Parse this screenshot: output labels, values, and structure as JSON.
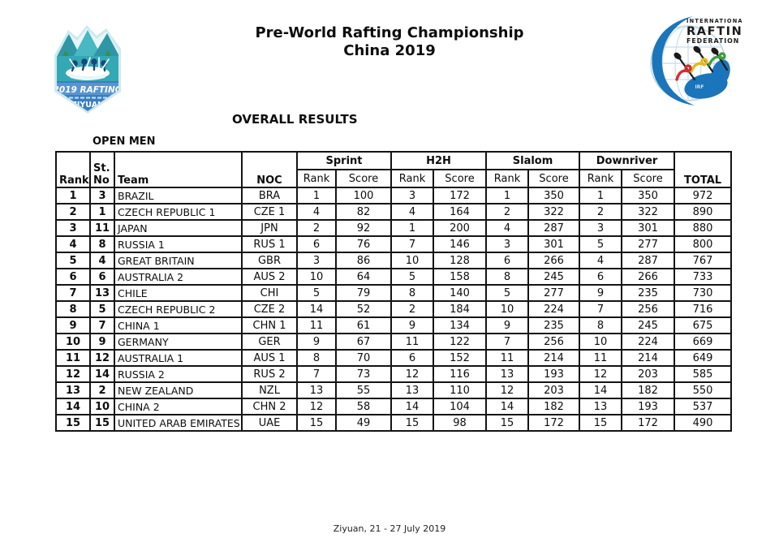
{
  "title": {
    "line1": "Pre-World Rafting Championship",
    "line2": "China 2019"
  },
  "section_heading": "OVERALL RESULTS",
  "category": "OPEN MEN",
  "event_logo": {
    "year_line": "2019 RAFTING",
    "location": "· ZIYUAN ·"
  },
  "irf_logo": {
    "line1": "INTERNATIONAL",
    "line2": "RAFTING",
    "line3": "FEDERATION",
    "raft_label": "IRF"
  },
  "colors": {
    "badge_teal": "#35a8b5",
    "badge_blue": "#3b7ec1",
    "badge_band": "#5795cf",
    "badge_sky": "#e8f6f7",
    "irf_blue": "#1b75bb",
    "globe_grid": "#b7d7e8",
    "paddler_red": "#cf2f2f",
    "paddler_green": "#3f9e3f",
    "paddler_yellow": "#e3b91c"
  },
  "table": {
    "columns": {
      "rank": "Rank",
      "st_no_line1": "St.",
      "st_no_line2": "No",
      "team": "Team",
      "noc": "NOC",
      "sub_rank": "Rank",
      "sub_score": "Score",
      "total": "TOTAL"
    },
    "groups": [
      "Sprint",
      "H2H",
      "Slalom",
      "Downriver"
    ],
    "rows": [
      [
        "1",
        "3",
        "BRAZIL",
        "BRA",
        "1",
        "100",
        "3",
        "172",
        "1",
        "350",
        "1",
        "350",
        "972"
      ],
      [
        "2",
        "1",
        "CZECH REPUBLIC 1",
        "CZE 1",
        "4",
        "82",
        "4",
        "164",
        "2",
        "322",
        "2",
        "322",
        "890"
      ],
      [
        "3",
        "11",
        "JAPAN",
        "JPN",
        "2",
        "92",
        "1",
        "200",
        "4",
        "287",
        "3",
        "301",
        "880"
      ],
      [
        "4",
        "8",
        "RUSSIA 1",
        "RUS 1",
        "6",
        "76",
        "7",
        "146",
        "3",
        "301",
        "5",
        "277",
        "800"
      ],
      [
        "5",
        "4",
        "GREAT BRITAIN",
        "GBR",
        "3",
        "86",
        "10",
        "128",
        "6",
        "266",
        "4",
        "287",
        "767"
      ],
      [
        "6",
        "6",
        "AUSTRALIA 2",
        "AUS 2",
        "10",
        "64",
        "5",
        "158",
        "8",
        "245",
        "6",
        "266",
        "733"
      ],
      [
        "7",
        "13",
        "CHILE",
        "CHI",
        "5",
        "79",
        "8",
        "140",
        "5",
        "277",
        "9",
        "235",
        "730"
      ],
      [
        "8",
        "5",
        "CZECH REPUBLIC 2",
        "CZE 2",
        "14",
        "52",
        "2",
        "184",
        "10",
        "224",
        "7",
        "256",
        "716"
      ],
      [
        "9",
        "7",
        "CHINA 1",
        "CHN 1",
        "11",
        "61",
        "9",
        "134",
        "9",
        "235",
        "8",
        "245",
        "675"
      ],
      [
        "10",
        "9",
        "GERMANY",
        "GER",
        "9",
        "67",
        "11",
        "122",
        "7",
        "256",
        "10",
        "224",
        "669"
      ],
      [
        "11",
        "12",
        "AUSTRALIA 1",
        "AUS 1",
        "8",
        "70",
        "6",
        "152",
        "11",
        "214",
        "11",
        "214",
        "649"
      ],
      [
        "12",
        "14",
        "RUSSIA 2",
        "RUS 2",
        "7",
        "73",
        "12",
        "116",
        "13",
        "193",
        "12",
        "203",
        "585"
      ],
      [
        "13",
        "2",
        "NEW ZEALAND",
        "NZL",
        "13",
        "55",
        "13",
        "110",
        "12",
        "203",
        "14",
        "182",
        "550"
      ],
      [
        "14",
        "10",
        "CHINA 2",
        "CHN 2",
        "12",
        "58",
        "14",
        "104",
        "14",
        "182",
        "13",
        "193",
        "537"
      ],
      [
        "15",
        "15",
        "UNITED ARAB EMIRATES",
        "UAE",
        "15",
        "49",
        "15",
        "98",
        "15",
        "172",
        "15",
        "172",
        "490"
      ]
    ]
  },
  "footer": "Ziyuan, 21 - 27 July 2019"
}
